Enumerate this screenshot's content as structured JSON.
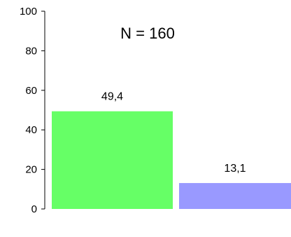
{
  "chart_data": {
    "type": "bar",
    "categories": [
      "",
      ""
    ],
    "values": [
      49.4,
      13.1
    ],
    "value_labels": [
      "49,4",
      "13,1"
    ],
    "colors": [
      "#66ff66",
      "#9999ff"
    ],
    "annotation": "N = 160",
    "title": "",
    "xlabel": "",
    "ylabel": "",
    "ylim": [
      0,
      100
    ],
    "yticks": [
      0,
      20,
      40,
      60,
      80,
      100
    ],
    "ytick_labels": [
      "0",
      "20",
      "40",
      "60",
      "80",
      "100"
    ],
    "grid": false,
    "legend": "none"
  }
}
